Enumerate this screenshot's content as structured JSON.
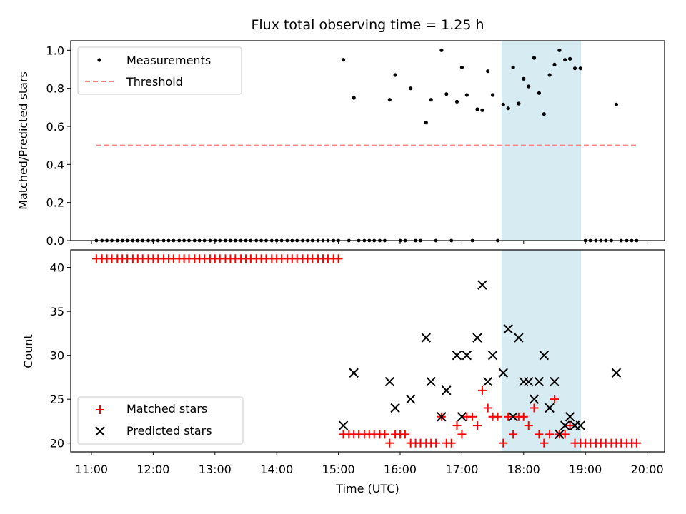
{
  "chart_data": [
    {
      "type": "scatter",
      "title": "Flux total observing time = 1.25 h",
      "ylabel": "Matched/Predicted stars",
      "ylim": [
        0,
        1.05
      ],
      "yticks": [
        "0.0",
        "0.2",
        "0.4",
        "0.6",
        "0.8",
        "1.0"
      ],
      "xticks": [
        "11:00",
        "12:00",
        "13:00",
        "14:00",
        "15:00",
        "16:00",
        "17:00",
        "18:00",
        "19:00",
        "20:00"
      ],
      "legend_position": "top-left",
      "shaded_region_hours": [
        17.65,
        18.92
      ],
      "shaded_color": "#add8e6",
      "series": [
        {
          "name": "Measurements",
          "marker": "dot",
          "color": "#000000",
          "zero_x": [
            11.08,
            11.17,
            11.25,
            11.33,
            11.42,
            11.5,
            11.58,
            11.67,
            11.75,
            11.83,
            11.92,
            12.0,
            12.08,
            12.17,
            12.25,
            12.33,
            12.42,
            12.5,
            12.58,
            12.67,
            12.75,
            12.83,
            12.92,
            13.0,
            13.08,
            13.17,
            13.25,
            13.33,
            13.42,
            13.5,
            13.58,
            13.67,
            13.75,
            13.83,
            13.92,
            14.0,
            14.08,
            14.17,
            14.25,
            14.33,
            14.42,
            14.5,
            14.58,
            14.67,
            14.75,
            14.83,
            14.92,
            15.0,
            15.17,
            15.33,
            15.42,
            15.5,
            15.58,
            15.67,
            15.75,
            16.0,
            16.08,
            16.25,
            16.33,
            16.58,
            16.83,
            17.17,
            17.58,
            19.0,
            19.08,
            19.17,
            19.25,
            19.33,
            19.42,
            19.58,
            19.67,
            19.75,
            19.83
          ],
          "x": [
            15.08,
            15.25,
            15.83,
            15.92,
            16.17,
            16.42,
            16.5,
            16.67,
            16.75,
            16.92,
            17.0,
            17.08,
            17.25,
            17.33,
            17.42,
            17.5,
            17.67,
            17.75,
            17.83,
            17.92,
            18.0,
            18.08,
            18.17,
            18.25,
            18.33,
            18.42,
            18.5,
            18.58,
            18.67,
            18.75,
            18.83,
            18.92,
            19.5
          ],
          "y": [
            0.95,
            0.75,
            0.74,
            0.87,
            0.8,
            0.62,
            0.74,
            1.0,
            0.77,
            0.73,
            0.91,
            0.765,
            0.69,
            0.685,
            0.89,
            0.765,
            0.715,
            0.695,
            0.91,
            0.72,
            0.85,
            0.81,
            0.96,
            0.775,
            0.665,
            0.87,
            0.925,
            1.0,
            0.95,
            0.955,
            0.905,
            0.905,
            0.715
          ]
        },
        {
          "name": "Threshold",
          "marker": "dashed-line",
          "color": "#ff7f7f",
          "x": [
            11.08,
            19.83
          ],
          "y": [
            0.5,
            0.5
          ]
        }
      ]
    },
    {
      "type": "scatter",
      "xlabel": "Time (UTC)",
      "ylabel": "Count",
      "ylim": [
        19.0,
        42.0
      ],
      "yticks": [
        "20",
        "25",
        "30",
        "35",
        "40"
      ],
      "xticks": [
        "11:00",
        "12:00",
        "13:00",
        "14:00",
        "15:00",
        "16:00",
        "17:00",
        "18:00",
        "19:00",
        "20:00"
      ],
      "legend_position": "bottom-left",
      "shaded_region_hours": [
        17.65,
        18.92
      ],
      "series": [
        {
          "name": "Matched stars",
          "marker": "plus",
          "color": "#ff0000",
          "x": [
            11.08,
            11.17,
            11.25,
            11.33,
            11.42,
            11.5,
            11.58,
            11.67,
            11.75,
            11.83,
            11.92,
            12.0,
            12.08,
            12.17,
            12.25,
            12.33,
            12.42,
            12.5,
            12.58,
            12.67,
            12.75,
            12.83,
            12.92,
            13.0,
            13.08,
            13.17,
            13.25,
            13.33,
            13.42,
            13.5,
            13.58,
            13.67,
            13.75,
            13.83,
            13.92,
            14.0,
            14.08,
            14.17,
            14.25,
            14.33,
            14.42,
            14.5,
            14.58,
            14.67,
            14.75,
            14.83,
            14.92,
            15.0,
            15.08,
            15.17,
            15.25,
            15.33,
            15.42,
            15.5,
            15.58,
            15.67,
            15.75,
            15.83,
            15.92,
            16.0,
            16.08,
            16.17,
            16.25,
            16.33,
            16.42,
            16.5,
            16.58,
            16.67,
            16.75,
            16.83,
            16.92,
            17.0,
            17.08,
            17.17,
            17.25,
            17.33,
            17.42,
            17.5,
            17.58,
            17.67,
            17.75,
            17.83,
            17.92,
            18.0,
            18.08,
            18.17,
            18.25,
            18.33,
            18.42,
            18.5,
            18.58,
            18.67,
            18.75,
            18.83,
            18.92,
            19.0,
            19.08,
            19.17,
            19.25,
            19.33,
            19.42,
            19.5,
            19.58,
            19.67,
            19.75,
            19.83
          ],
          "y": [
            41,
            41,
            41,
            41,
            41,
            41,
            41,
            41,
            41,
            41,
            41,
            41,
            41,
            41,
            41,
            41,
            41,
            41,
            41,
            41,
            41,
            41,
            41,
            41,
            41,
            41,
            41,
            41,
            41,
            41,
            41,
            41,
            41,
            41,
            41,
            41,
            41,
            41,
            41,
            41,
            41,
            41,
            41,
            41,
            41,
            41,
            41,
            41,
            21,
            21,
            21,
            21,
            21,
            21,
            21,
            21,
            21,
            20,
            21,
            21,
            21,
            20,
            20,
            20,
            20,
            20,
            20,
            23,
            20,
            20,
            22,
            21,
            23,
            23,
            22,
            26,
            24,
            23,
            23,
            20,
            23,
            21,
            23,
            23,
            22,
            24,
            21,
            20,
            21,
            25,
            21,
            21,
            22,
            20,
            20,
            20,
            20,
            20,
            20,
            20,
            20,
            20,
            20,
            20,
            20,
            20
          ]
        },
        {
          "name": "Predicted stars",
          "marker": "x",
          "color": "#000000",
          "x": [
            15.08,
            15.25,
            15.83,
            15.92,
            16.17,
            16.42,
            16.5,
            16.67,
            16.75,
            16.92,
            17.0,
            17.08,
            17.25,
            17.33,
            17.42,
            17.5,
            17.67,
            17.75,
            17.83,
            17.92,
            18.0,
            18.08,
            18.17,
            18.25,
            18.33,
            18.42,
            18.5,
            18.58,
            18.67,
            18.75,
            18.83,
            18.92,
            19.5
          ],
          "y": [
            22,
            28,
            27,
            24,
            25,
            32,
            27,
            23,
            26,
            30,
            23,
            30,
            32,
            38,
            27,
            30,
            28,
            33,
            23,
            32,
            27,
            27,
            25,
            27,
            30,
            24,
            27,
            21,
            22,
            23,
            22,
            22,
            28
          ]
        }
      ]
    }
  ]
}
